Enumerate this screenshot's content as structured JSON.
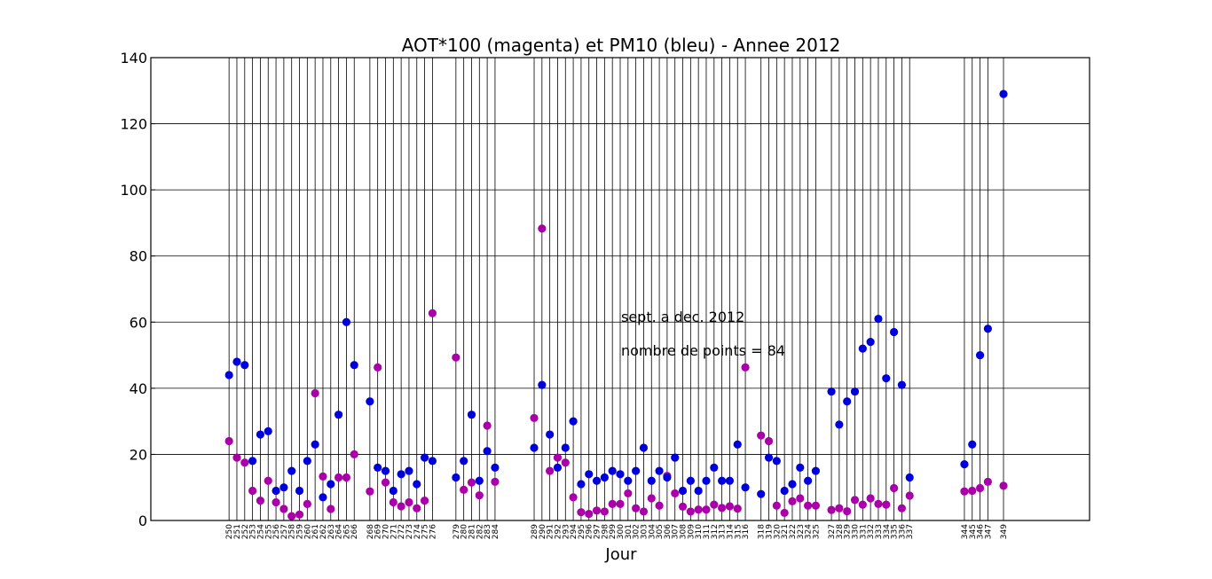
{
  "chart_data": {
    "type": "scatter",
    "title": "AOT*100 (magenta) et PM10 (bleu) - Annee 2012",
    "xlabel": "Jour",
    "ylabel": "",
    "xlim": [
      240,
      360
    ],
    "ylim": [
      0,
      140
    ],
    "yticks": [
      0,
      20,
      40,
      60,
      80,
      100,
      120,
      140
    ],
    "grid": "vertical lines at each measured day, horizontal lines at y ticks",
    "annotations": [
      "sept. a dec. 2012",
      "nombre de points = 84"
    ],
    "colors": {
      "aot": "#aa00aa",
      "pm10": "#0000dd",
      "grid": "#000000"
    },
    "x": [
      250,
      251,
      252,
      253,
      254,
      255,
      256,
      257,
      258,
      259,
      260,
      261,
      262,
      263,
      264,
      265,
      266,
      268,
      269,
      270,
      271,
      272,
      273,
      274,
      275,
      276,
      279,
      280,
      281,
      282,
      283,
      284,
      289,
      290,
      291,
      292,
      293,
      294,
      295,
      296,
      297,
      298,
      299,
      300,
      301,
      302,
      303,
      304,
      305,
      306,
      307,
      308,
      309,
      310,
      311,
      312,
      313,
      314,
      315,
      316,
      318,
      319,
      320,
      321,
      322,
      323,
      324,
      325,
      327,
      328,
      329,
      330,
      331,
      332,
      333,
      334,
      335,
      336,
      337,
      344,
      345,
      346,
      347,
      349
    ],
    "series": [
      {
        "name": "AOT*100",
        "values": [
          24,
          19,
          17.5,
          9,
          6,
          12,
          5.5,
          3.5,
          1.3,
          1.8,
          5,
          38.5,
          13.3,
          3.5,
          13,
          13,
          20,
          8.8,
          46.3,
          11.5,
          5.5,
          4.3,
          5.5,
          3.7,
          6,
          62.7,
          49.3,
          9.3,
          11.5,
          7.6,
          28.7,
          11.7,
          31,
          88.3,
          15,
          19,
          17.5,
          7,
          2.5,
          2,
          3,
          2.7,
          5,
          5,
          8.2,
          3.7,
          2.7,
          6.7,
          4.5,
          13.5,
          8.2,
          4.2,
          2.7,
          3.3,
          3.3,
          4.8,
          3.8,
          4.3,
          3.6,
          46.3,
          25.7,
          24,
          4.5,
          2.3,
          5.8,
          6.7,
          4.5,
          4.5,
          3.2,
          3.7,
          2.8,
          6.2,
          4.8,
          6.7,
          5,
          4.8,
          9.8,
          3.7,
          7.5,
          8.8,
          9,
          9.8,
          11.7,
          10.5
        ]
      },
      {
        "name": "PM10",
        "values": [
          44,
          48,
          47,
          18,
          26,
          27,
          9,
          10,
          15,
          9,
          18,
          23,
          7,
          11,
          32,
          60,
          47,
          36,
          16,
          15,
          9,
          14,
          15,
          11,
          19,
          18,
          13,
          18,
          32,
          12,
          21,
          16,
          22,
          41,
          26,
          16,
          22,
          30,
          11,
          14,
          12,
          13,
          15,
          14,
          12,
          15,
          22,
          12,
          15,
          13,
          19,
          9,
          12,
          9,
          12,
          16,
          12,
          12,
          23,
          10,
          8,
          19,
          18,
          9,
          11,
          16,
          12,
          15,
          39,
          29,
          36,
          39,
          52,
          54,
          61,
          43,
          57,
          41,
          13,
          17,
          23,
          50,
          58,
          129
        ]
      }
    ]
  }
}
